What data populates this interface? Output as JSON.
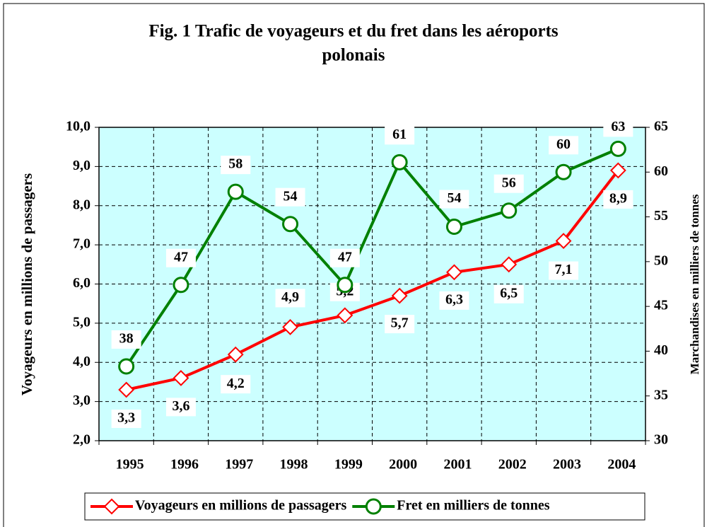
{
  "chart_data": {
    "type": "line",
    "title": [
      "Fig. 1 Trafic de voyageurs et du fret dans les aéroports",
      "polonais"
    ],
    "ylabel": "Voyageurs en millions de passagers",
    "y2label": "Marchandises en milliers de tonnes",
    "categories": [
      "1995",
      "1996",
      "1997",
      "1998",
      "1999",
      "2000",
      "2001",
      "2002",
      "2003",
      "2004"
    ],
    "ylim": [
      2,
      10
    ],
    "yticks": [
      {
        "value": 2,
        "label": "2,0"
      },
      {
        "value": 3,
        "label": "3,0"
      },
      {
        "value": 4,
        "label": "4,0"
      },
      {
        "value": 5,
        "label": "5,0"
      },
      {
        "value": 6,
        "label": "6,0"
      },
      {
        "value": 7,
        "label": "7,0"
      },
      {
        "value": 8,
        "label": "8,0"
      },
      {
        "value": 9,
        "label": "9,0"
      },
      {
        "value": 10,
        "label": "10,0"
      }
    ],
    "y2lim": [
      30,
      65
    ],
    "y2ticks": [
      30,
      35,
      40,
      45,
      50,
      55,
      60,
      65
    ],
    "grid": true,
    "legend": "bottom",
    "series": [
      {
        "name": "Voyageurs en millions de passagers",
        "color": "#ff0000",
        "marker": "diamond",
        "values": [
          3.3,
          3.6,
          4.2,
          4.9,
          5.2,
          5.7,
          6.3,
          6.5,
          7.1,
          8.9
        ],
        "value_labels": [
          "3,3",
          "3,6",
          "4,2",
          "4,9",
          "5,2",
          "5,7",
          "6,3",
          "6,5",
          "7,1",
          "8,9"
        ]
      },
      {
        "name": "Fret en milliers de tonnes",
        "color": "#008000",
        "marker": "circle",
        "axis": "y2",
        "values": [
          38.3,
          47.4,
          57.8,
          54.2,
          47.4,
          61.1,
          53.9,
          55.7,
          60.0,
          62.6
        ],
        "value_labels": [
          "38",
          "47",
          "58",
          "54",
          "47",
          "61",
          "54",
          "56",
          "60",
          "63"
        ]
      }
    ]
  }
}
